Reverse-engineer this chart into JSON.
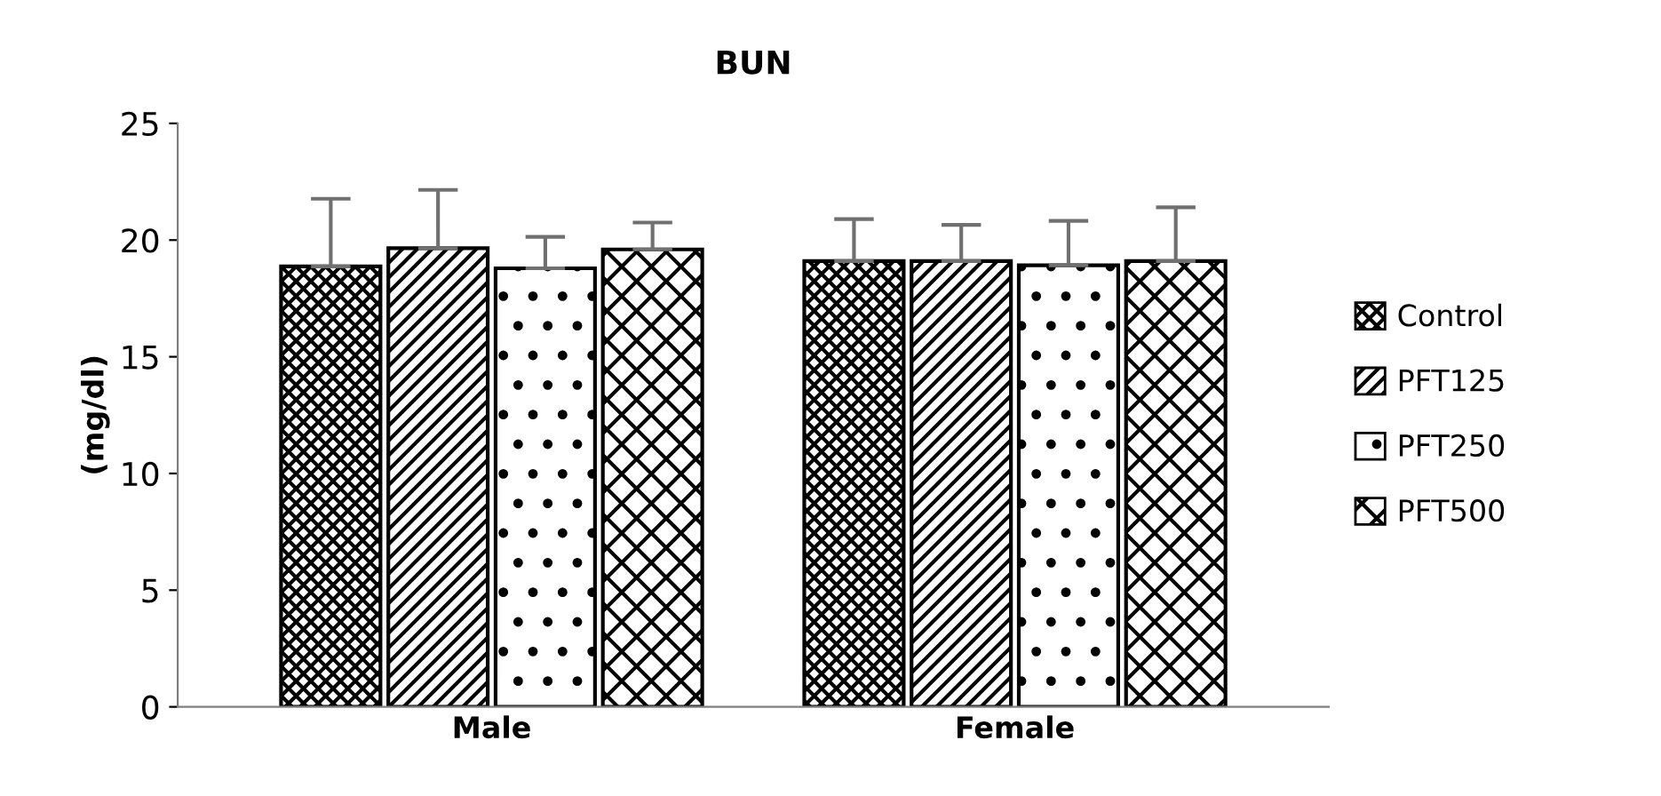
{
  "chart_data": {
    "type": "bar",
    "title": "BUN",
    "ylabel": "(mg/dl)",
    "categories": [
      "Male",
      "Female"
    ],
    "series": [
      {
        "name": "Control",
        "color": "#000000",
        "values": [
          18.87,
          19.1
        ],
        "errors": [
          [
            18.87,
            21.77
          ],
          [
            19.1,
            20.9
          ]
        ]
      },
      {
        "name": "PFT125",
        "color": "#000000",
        "values": [
          19.65,
          19.1
        ],
        "errors": [
          [
            19.65,
            22.15
          ],
          [
            19.1,
            20.65
          ]
        ]
      },
      {
        "name": "PFT250",
        "color": "#000000",
        "values": [
          18.79,
          18.92
        ],
        "errors": [
          [
            18.79,
            20.14
          ],
          [
            18.92,
            20.82
          ]
        ]
      },
      {
        "name": "PFT500",
        "color": "#000000",
        "values": [
          19.6,
          19.1
        ],
        "errors": [
          [
            19.6,
            20.75
          ],
          [
            19.1,
            21.4
          ]
        ]
      }
    ],
    "ylim": [
      0,
      25
    ],
    "yticks": [
      0,
      5,
      10,
      15,
      20,
      25
    ],
    "grid": false,
    "legend": "right"
  }
}
